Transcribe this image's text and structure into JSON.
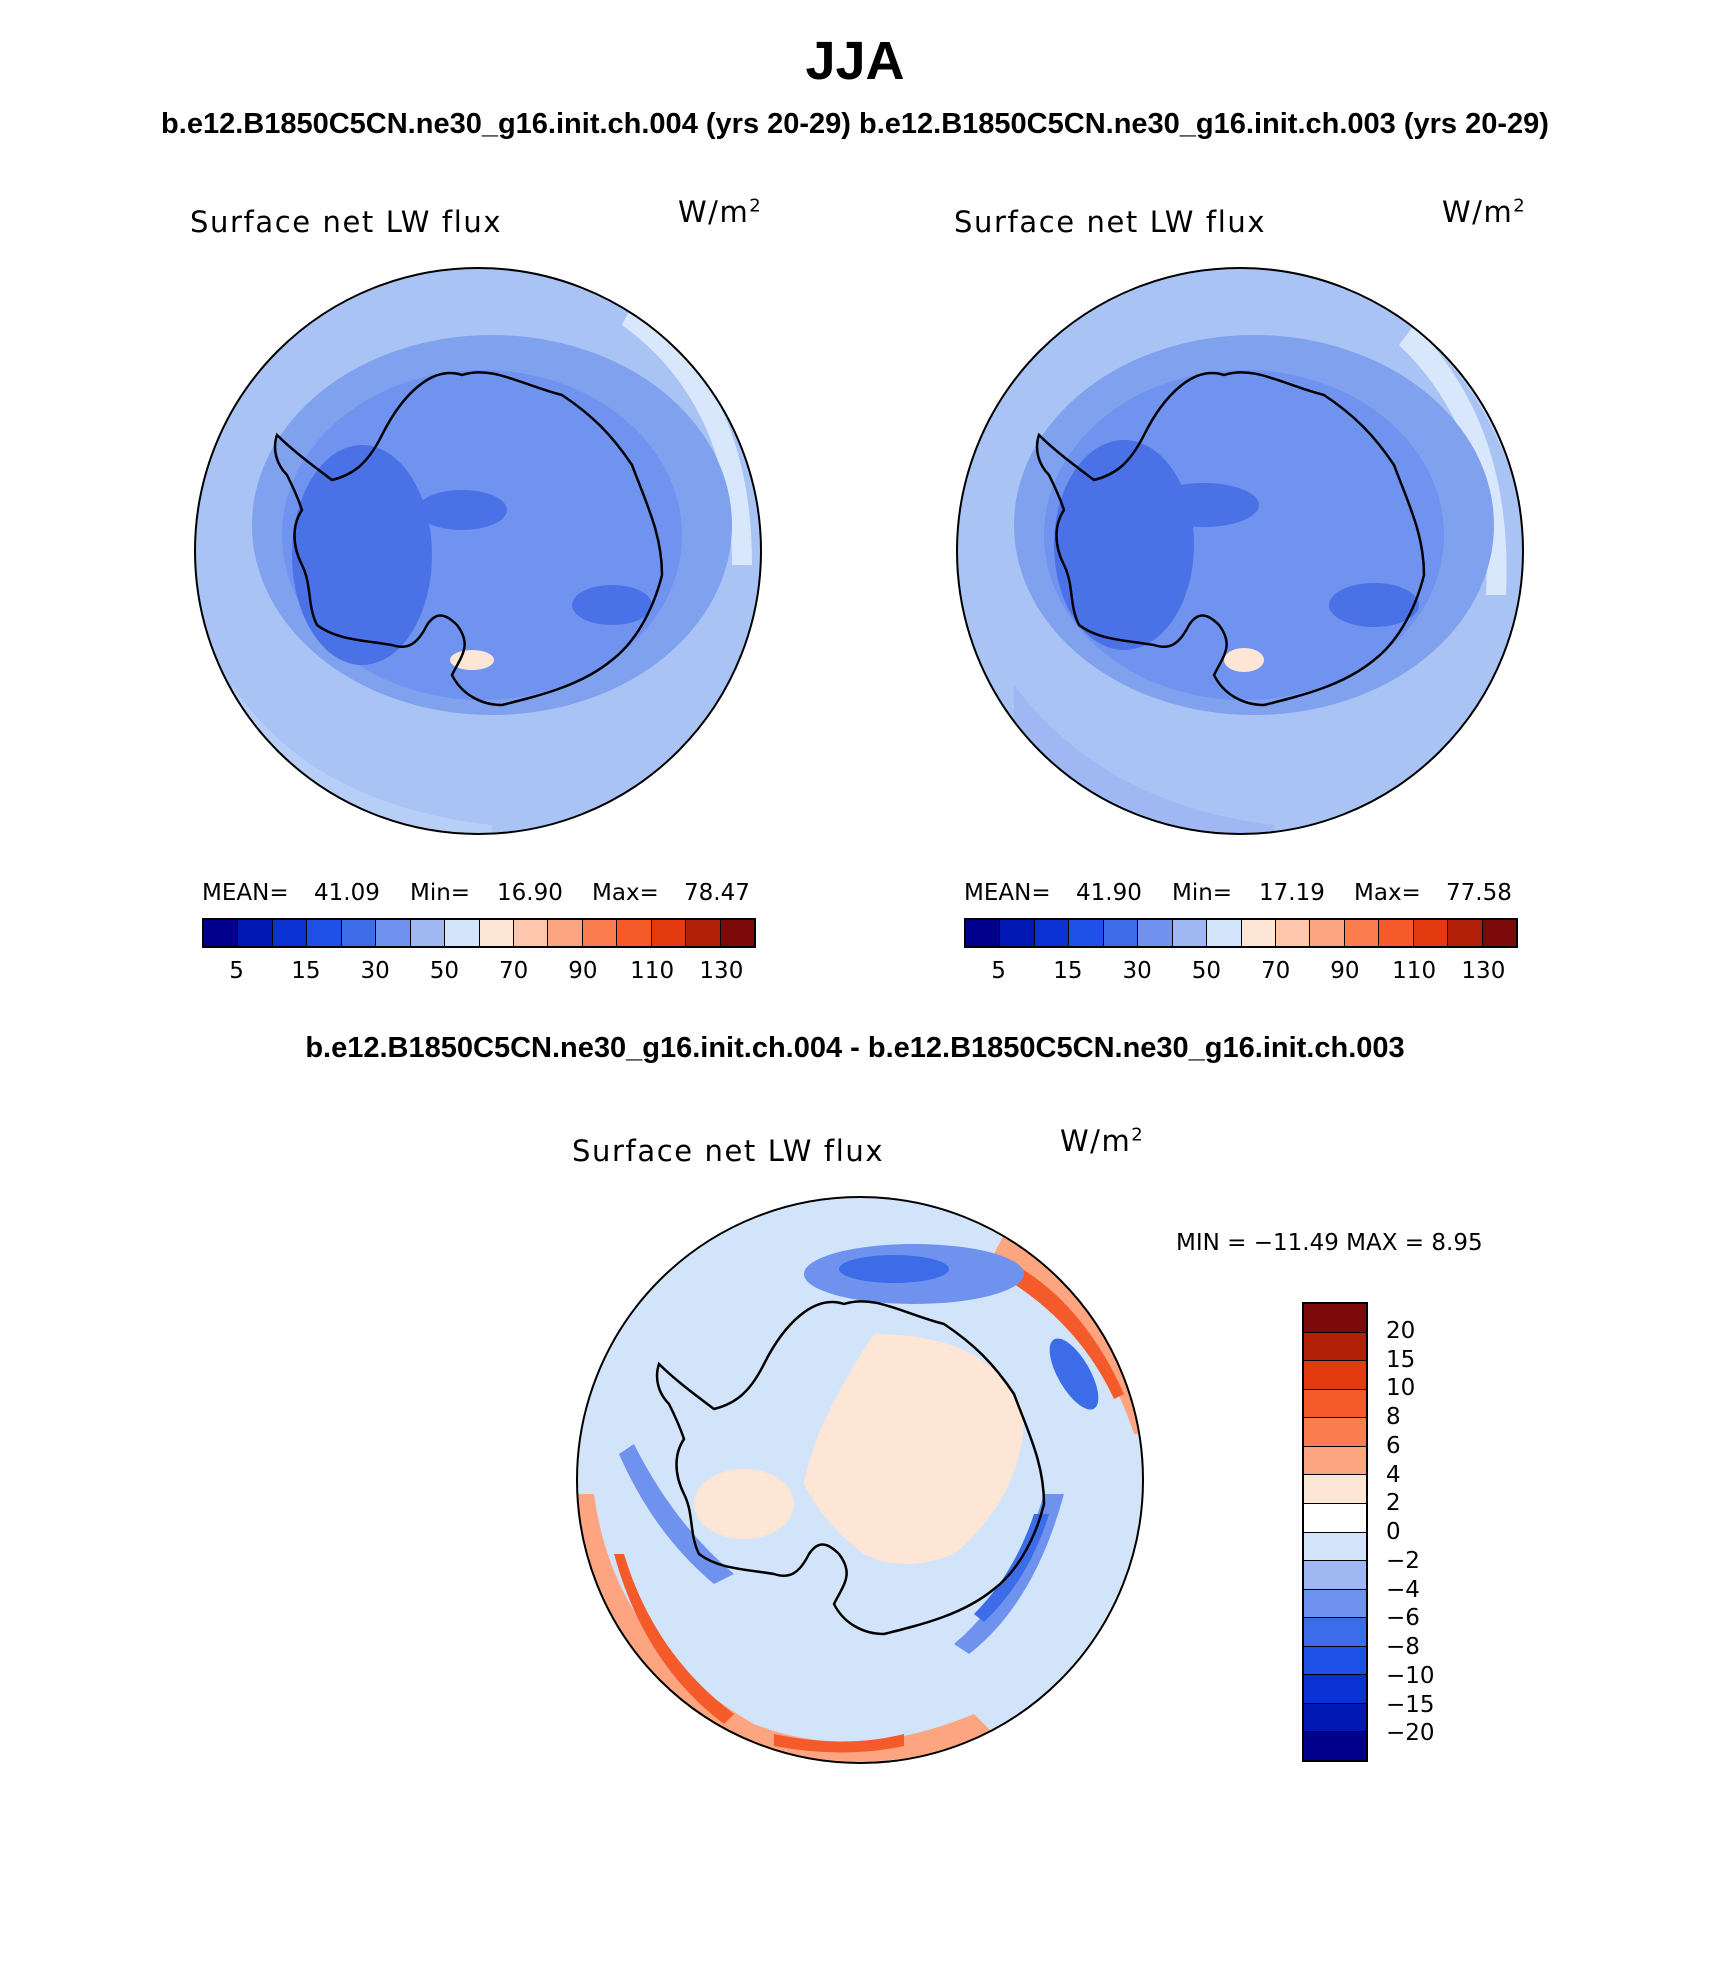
{
  "title": "JJA",
  "runs_header": "b.e12.B1850C5CN.ne30_g16.init.ch.004 (yrs 20-29) b.e12.B1850C5CN.ne30_g16.init.ch.003 (yrs 20-29)",
  "diff_header": "b.e12.B1850C5CN.ne30_g16.init.ch.004 - b.e12.B1850C5CN.ne30_g16.init.ch.003",
  "panels": [
    {
      "variable": "Surface net LW flux",
      "units": "W/m",
      "units_exp": "2",
      "mean_label": "MEAN=",
      "mean": "41.09",
      "min_label": "Min=",
      "min": "16.90",
      "max_label": "Max=",
      "max": "78.47"
    },
    {
      "variable": "Surface net LW flux",
      "units": "W/m",
      "units_exp": "2",
      "mean_label": "MEAN=",
      "mean": "41.90",
      "min_label": "Min=",
      "min": "17.19",
      "max_label": "Max=",
      "max": "77.58"
    }
  ],
  "diff_panel": {
    "variable": "Surface net LW flux",
    "units": "W/m",
    "units_exp": "2",
    "minmax": "MIN = −11.49 MAX =    8.95"
  },
  "colorbar_main": {
    "colors": [
      "#00008c",
      "#0019b4",
      "#0a32d2",
      "#1e4fe6",
      "#3c6ce8",
      "#6e92ee",
      "#9fb8f4",
      "#d2e4fa",
      "#fde6d6",
      "#fdc6ad",
      "#fca580",
      "#fb7d4f",
      "#f55a2a",
      "#e43a10",
      "#b3200a",
      "#7d0a0a"
    ],
    "labels": [
      "5",
      "15",
      "30",
      "50",
      "70",
      "90",
      "110",
      "130"
    ]
  },
  "colorbar_diff": {
    "colors": [
      "#7d0a0a",
      "#b3200a",
      "#e43a10",
      "#f55a2a",
      "#fb7d4f",
      "#fca580",
      "#fde6d6",
      "#ffffff",
      "#d2e4fa",
      "#9fb8f4",
      "#6e92ee",
      "#3c6ce8",
      "#1e4fe6",
      "#0a32d2",
      "#0019b4",
      "#00008c"
    ],
    "labels": [
      "20",
      "15",
      "10",
      "8",
      "6",
      "4",
      "2",
      "0",
      "−2",
      "−4",
      "−6",
      "−8",
      "−10",
      "−15",
      "−20"
    ]
  }
}
